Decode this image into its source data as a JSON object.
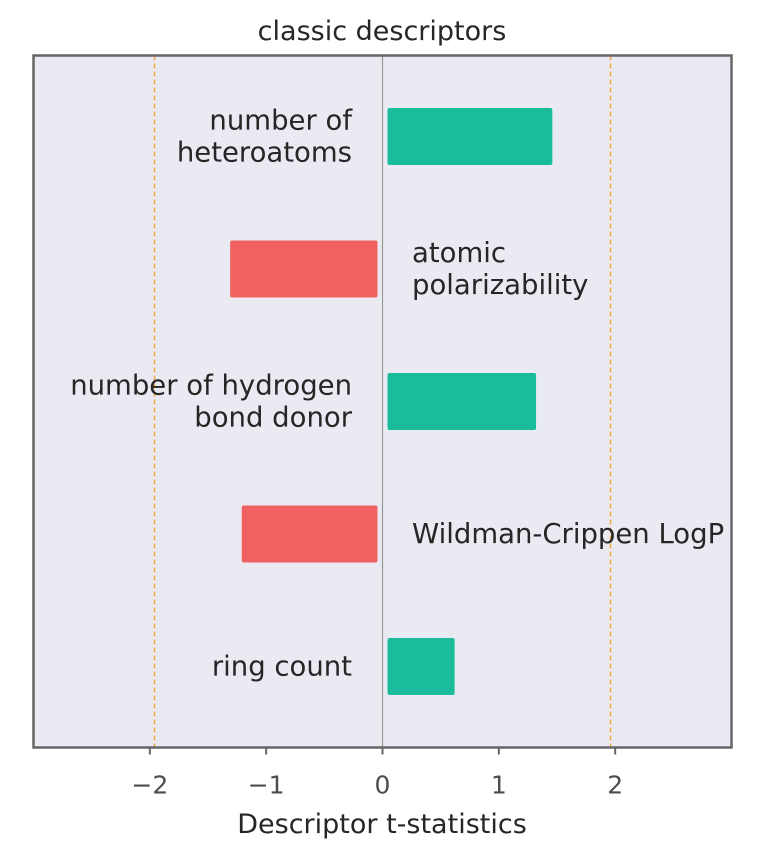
{
  "chart_data": {
    "type": "bar",
    "orientation": "horizontal",
    "title": "classic descriptors",
    "xlabel": "Descriptor t-statistics",
    "ylabel": "",
    "xlim": [
      -3,
      3
    ],
    "xticks": [
      -2,
      -1,
      0,
      1,
      2
    ],
    "xtick_labels": [
      "−2",
      "−1",
      "0",
      "1",
      "2"
    ],
    "threshold_lines": [
      -1.96,
      1.96
    ],
    "grid": false,
    "categories": [
      [
        "number of",
        "heteroatoms"
      ],
      [
        "atomic",
        "polarizability"
      ],
      [
        "number of hydrogen",
        "bond donor"
      ],
      [
        "Wildman-Crippen LogP"
      ],
      [
        "ring count"
      ]
    ],
    "values": [
      1.46,
      -1.31,
      1.32,
      -1.21,
      0.62
    ],
    "colors": {
      "positive": "#1abc9c",
      "negative": "#f06262",
      "threshold": "#f5a742",
      "plot_background": "#eaeaf2",
      "frame": "#666666",
      "zero_line": "#999999"
    }
  }
}
